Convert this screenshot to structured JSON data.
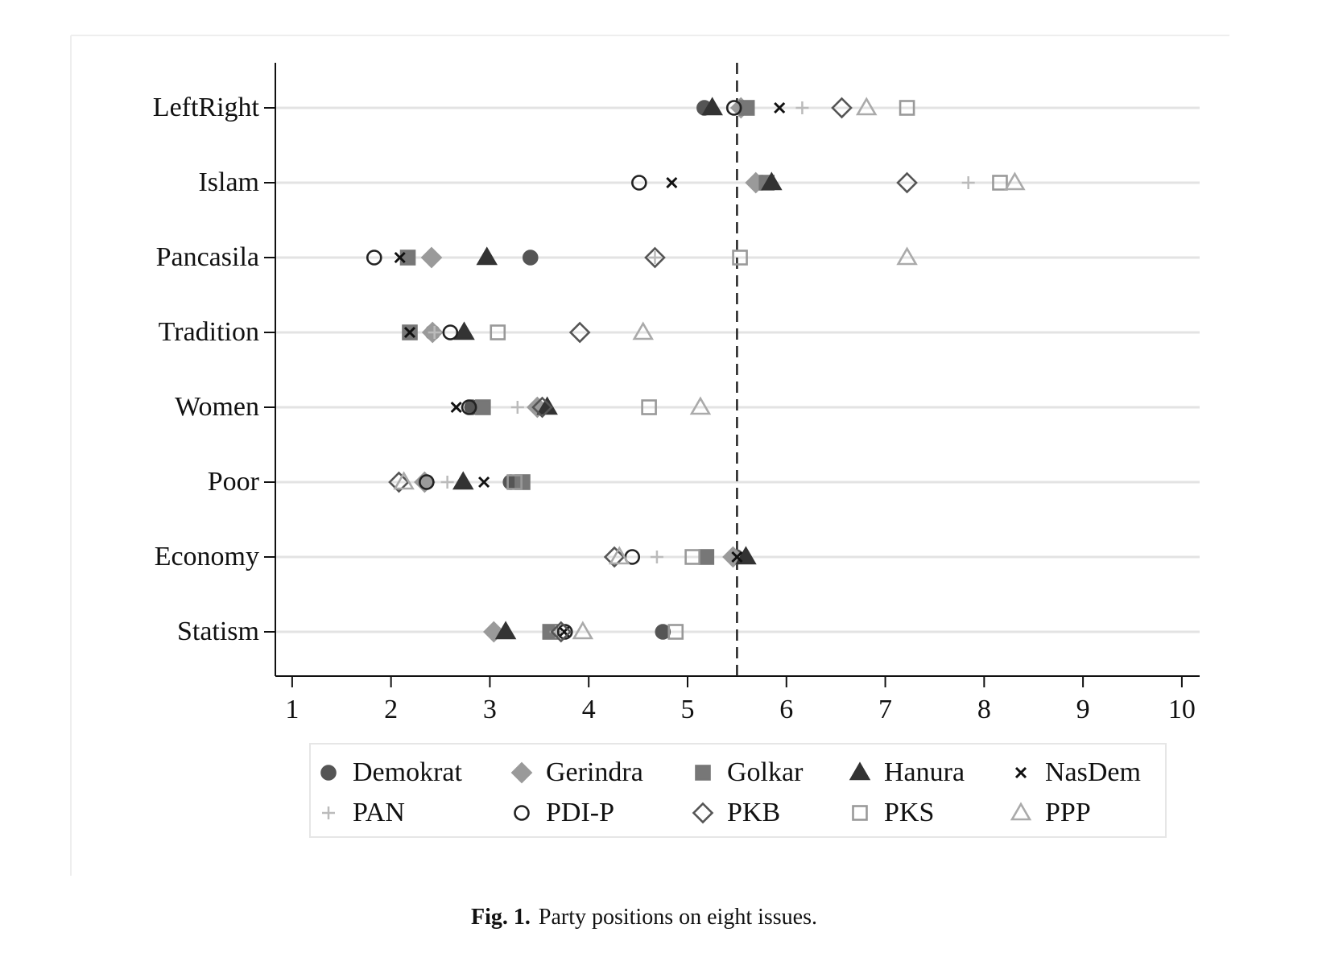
{
  "chart_data": {
    "type": "dot",
    "categories": [
      "LeftRight",
      "Islam",
      "Pancasila",
      "Tradition",
      "Women",
      "Poor",
      "Economy",
      "Statism"
    ],
    "xlim": [
      0.83,
      10.18
    ],
    "xticks": [
      1,
      2,
      3,
      4,
      5,
      6,
      7,
      8,
      9,
      10
    ],
    "reference_line": 5.5,
    "grid": true,
    "legend_position": "bottom",
    "series": [
      {
        "name": "Demokrat",
        "marker": "circle",
        "filled": true,
        "color": "#555555",
        "values": [
          5.17,
          5.75,
          3.41,
          2.42,
          2.82,
          3.21,
          5.49,
          4.75
        ]
      },
      {
        "name": "Gerindra",
        "marker": "diamond",
        "filled": true,
        "color": "#9a9a9a",
        "values": [
          5.54,
          5.69,
          2.41,
          2.42,
          3.48,
          2.34,
          5.46,
          3.04
        ]
      },
      {
        "name": "Golkar",
        "marker": "square",
        "filled": true,
        "color": "#777777",
        "values": [
          5.6,
          5.8,
          2.17,
          2.19,
          2.93,
          3.33,
          5.19,
          3.61
        ]
      },
      {
        "name": "Hanura",
        "marker": "triangle",
        "filled": true,
        "color": "#333333",
        "values": [
          5.25,
          5.85,
          2.97,
          2.74,
          3.58,
          2.73,
          5.59,
          3.16
        ]
      },
      {
        "name": "NasDem",
        "marker": "x",
        "filled": false,
        "color": "#111111",
        "values": [
          5.93,
          4.84,
          2.09,
          2.19,
          2.66,
          2.94,
          5.5,
          3.75
        ]
      },
      {
        "name": "PAN",
        "marker": "plus",
        "filled": false,
        "color": "#bbbbbb",
        "values": [
          6.16,
          7.84,
          4.67,
          2.44,
          3.28,
          2.57,
          4.69,
          3.67
        ]
      },
      {
        "name": "PDI-P",
        "marker": "circle",
        "filled": false,
        "color": "#222222",
        "values": [
          5.47,
          4.51,
          1.83,
          2.6,
          2.79,
          2.36,
          4.44,
          3.76
        ]
      },
      {
        "name": "PKB",
        "marker": "diamond",
        "filled": false,
        "color": "#555555",
        "values": [
          6.56,
          7.22,
          4.67,
          3.91,
          3.53,
          2.08,
          4.26,
          3.72
        ]
      },
      {
        "name": "PKS",
        "marker": "square",
        "filled": false,
        "color": "#999999",
        "values": [
          7.22,
          8.16,
          5.53,
          3.08,
          4.61,
          3.25,
          5.05,
          4.88
        ]
      },
      {
        "name": "PPP",
        "marker": "triangle",
        "filled": false,
        "color": "#aaaaaa",
        "values": [
          6.81,
          8.31,
          7.22,
          4.55,
          5.13,
          2.13,
          4.31,
          3.94
        ]
      }
    ]
  },
  "caption": {
    "label": "Fig. 1.",
    "text": "Party positions on eight issues."
  }
}
